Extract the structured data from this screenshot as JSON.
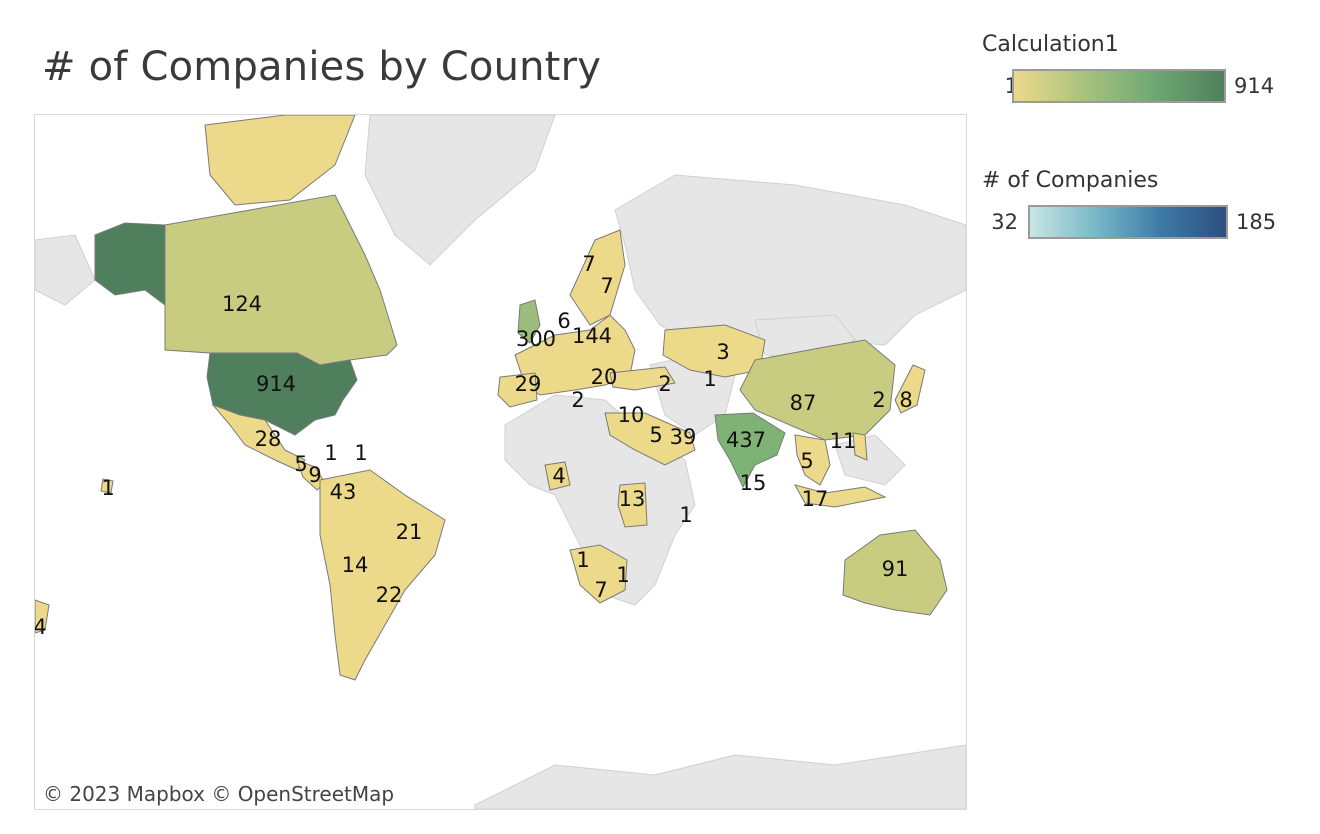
{
  "title": "# of Companies by Country",
  "attribution": "© 2023 Mapbox  © OpenStreetMap",
  "legends": {
    "calculation": {
      "title": "Calculation1",
      "min": "1",
      "max": "914",
      "colors": [
        "#ecd98a",
        "#a9c27f",
        "#6fa873",
        "#4f7f5c"
      ]
    },
    "companies": {
      "title": "# of Companies",
      "min": "32",
      "max": "185",
      "colors": [
        "#c9e6e2",
        "#78b8c8",
        "#3f7aa6",
        "#2c4f7e"
      ]
    }
  },
  "colors": {
    "land_gray": "#e6e6e6",
    "country_border": "#7a7a7a",
    "low": "#ecd98a",
    "mid_low": "#e3d588",
    "mid": "#c8cc80",
    "india": "#7fb376",
    "uk": "#9bbe7d",
    "usa": "#4f7f5c"
  },
  "country_values": [
    {
      "country": "United States",
      "value": "914"
    },
    {
      "country": "India",
      "value": "437"
    },
    {
      "country": "United Kingdom",
      "value": "300"
    },
    {
      "country": "Germany",
      "value": "144"
    },
    {
      "country": "Canada",
      "value": "124"
    },
    {
      "country": "Australia",
      "value": "91"
    },
    {
      "country": "China",
      "value": "87"
    },
    {
      "country": "Colombia",
      "value": "43"
    },
    {
      "country": "UAE",
      "value": "39"
    },
    {
      "country": "Spain",
      "value": "29"
    },
    {
      "country": "Mexico",
      "value": "28"
    },
    {
      "country": "Argentina",
      "value": "22"
    },
    {
      "country": "Brazil",
      "value": "21"
    },
    {
      "country": "Italy",
      "value": "20"
    },
    {
      "country": "Indonesia",
      "value": "17"
    },
    {
      "country": "Sri Lanka",
      "value": "15"
    },
    {
      "country": "Chile",
      "value": "14"
    },
    {
      "country": "Kenya",
      "value": "13"
    },
    {
      "country": "Philippines",
      "value": "11"
    },
    {
      "country": "Egypt",
      "value": "10"
    },
    {
      "country": "Costa Rica",
      "value": "9"
    },
    {
      "country": "Japan",
      "value": "8"
    },
    {
      "country": "Norway",
      "value": "7"
    },
    {
      "country": "Sweden",
      "value": "7"
    },
    {
      "country": "South Africa",
      "value": "7"
    },
    {
      "country": "Netherlands",
      "value": "6"
    },
    {
      "country": "Guatemala",
      "value": "5"
    },
    {
      "country": "Saudi Arabia",
      "value": "5"
    },
    {
      "country": "Thailand",
      "value": "5"
    },
    {
      "country": "Nigeria",
      "value": "4"
    },
    {
      "country": "New Zealand",
      "value": "4"
    },
    {
      "country": "Kazakhstan",
      "value": "3"
    },
    {
      "country": "Malta",
      "value": "2"
    },
    {
      "country": "Georgia",
      "value": "2"
    },
    {
      "country": "South Korea",
      "value": "2"
    },
    {
      "country": "Uzbekistan",
      "value": "1"
    },
    {
      "country": "Jamaica",
      "value": "1"
    },
    {
      "country": "Dominican Republic",
      "value": "1"
    },
    {
      "country": "Hawaii",
      "value": "1"
    },
    {
      "country": "Mauritius",
      "value": "1"
    },
    {
      "country": "Namibia",
      "value": "1"
    },
    {
      "country": "Lesotho",
      "value": "1"
    }
  ]
}
